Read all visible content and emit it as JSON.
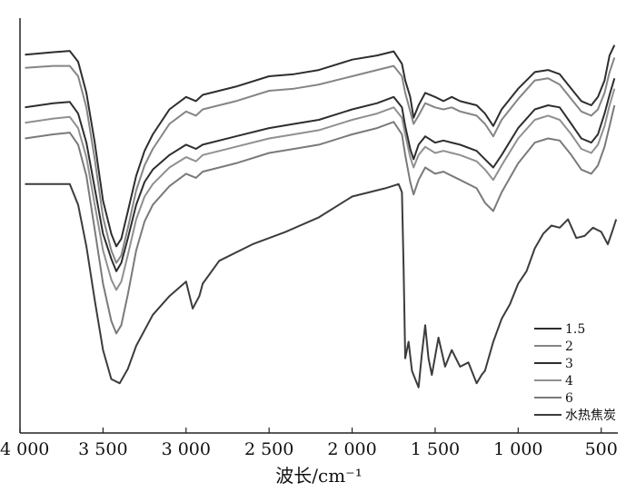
{
  "chart_data": {
    "type": "line",
    "title": "",
    "xlabel": "波长/cm⁻¹",
    "ylabel": "",
    "xlim": [
      4000,
      400
    ],
    "x_reversed": true,
    "x_ticks": [
      4000,
      3500,
      3000,
      2500,
      2000,
      1500,
      1000,
      500
    ],
    "x_tick_labels": [
      "4 000",
      "3 500",
      "3 000",
      "2 500",
      "2 000",
      "1 500",
      "1 000",
      "500"
    ],
    "ylim": [
      0,
      100
    ],
    "y_ticks": false,
    "grid": false,
    "legend_position": "bottom-right",
    "series": [
      {
        "name": "1.5",
        "color": "#2e2e2e",
        "x": [
          3970,
          3800,
          3700,
          3650,
          3600,
          3550,
          3500,
          3450,
          3420,
          3390,
          3350,
          3300,
          3250,
          3200,
          3100,
          3000,
          2940,
          2900,
          2700,
          2500,
          2350,
          2200,
          2000,
          1850,
          1750,
          1700,
          1680,
          1650,
          1630,
          1600,
          1560,
          1500,
          1450,
          1400,
          1350,
          1250,
          1200,
          1150,
          1100,
          1000,
          900,
          820,
          750,
          680,
          620,
          560,
          520,
          480,
          450,
          420
        ],
        "y": [
          91.2,
          91.8,
          92.1,
          89.5,
          82.0,
          70.0,
          56.0,
          48.0,
          45.0,
          46.8,
          53.5,
          62.0,
          68.0,
          72.0,
          78.0,
          81.0,
          80.0,
          81.5,
          83.5,
          86.0,
          86.5,
          87.5,
          90.0,
          91.0,
          92.0,
          89.0,
          85.0,
          81.0,
          76.0,
          79.0,
          82.0,
          81.0,
          80.0,
          81.0,
          80.0,
          79.0,
          77.0,
          74.0,
          78.0,
          83.0,
          87.0,
          87.5,
          86.5,
          83.0,
          80.0,
          79.0,
          81.0,
          85.0,
          91.0,
          93.5
        ]
      },
      {
        "name": "2",
        "color": "#858585",
        "x": [
          3970,
          3800,
          3700,
          3650,
          3600,
          3550,
          3500,
          3450,
          3420,
          3390,
          3350,
          3300,
          3250,
          3200,
          3100,
          3000,
          2940,
          2900,
          2700,
          2500,
          2350,
          2200,
          2000,
          1850,
          1750,
          1700,
          1680,
          1650,
          1630,
          1600,
          1560,
          1500,
          1450,
          1400,
          1350,
          1250,
          1200,
          1150,
          1100,
          1000,
          900,
          820,
          750,
          680,
          620,
          560,
          520,
          480,
          450,
          420
        ],
        "y": [
          88.0,
          88.5,
          88.5,
          86.0,
          78.5,
          66.0,
          52.0,
          44.0,
          41.0,
          42.8,
          49.5,
          58.5,
          64.5,
          68.5,
          74.5,
          77.5,
          76.5,
          78.0,
          80.0,
          82.5,
          83.0,
          84.0,
          86.0,
          87.5,
          88.5,
          86.0,
          82.0,
          77.5,
          74.5,
          76.5,
          79.5,
          78.5,
          78.0,
          78.5,
          77.5,
          76.5,
          74.5,
          71.5,
          75.5,
          80.5,
          85.0,
          85.5,
          84.0,
          80.5,
          77.5,
          76.5,
          78.0,
          82.0,
          87.0,
          90.5
        ]
      },
      {
        "name": "3",
        "color": "#2e2e2e",
        "x": [
          3970,
          3800,
          3700,
          3650,
          3600,
          3550,
          3500,
          3450,
          3420,
          3390,
          3350,
          3300,
          3250,
          3200,
          3100,
          3000,
          2940,
          2900,
          2700,
          2500,
          2350,
          2200,
          2000,
          1850,
          1750,
          1700,
          1680,
          1650,
          1630,
          1600,
          1560,
          1500,
          1450,
          1400,
          1350,
          1250,
          1200,
          1150,
          1100,
          1000,
          900,
          820,
          750,
          680,
          620,
          560,
          520,
          480,
          450,
          420
        ],
        "y": [
          78.5,
          79.5,
          79.8,
          77.0,
          70.0,
          59.0,
          48.0,
          42.0,
          39.0,
          41.0,
          47.0,
          55.0,
          60.5,
          63.5,
          67.0,
          69.5,
          68.5,
          69.5,
          71.5,
          73.5,
          74.5,
          75.5,
          78.0,
          79.5,
          81.0,
          78.5,
          74.0,
          68.5,
          66.0,
          69.5,
          71.5,
          70.0,
          70.5,
          70.0,
          69.5,
          68.0,
          66.0,
          64.0,
          67.0,
          73.5,
          78.0,
          79.0,
          78.5,
          74.5,
          71.0,
          70.0,
          72.0,
          77.0,
          81.5,
          85.5
        ]
      },
      {
        "name": "4",
        "color": "#909090",
        "x": [
          3970,
          3800,
          3700,
          3650,
          3600,
          3550,
          3500,
          3450,
          3420,
          3390,
          3350,
          3300,
          3250,
          3200,
          3100,
          3000,
          2940,
          2900,
          2700,
          2500,
          2350,
          2200,
          2000,
          1850,
          1750,
          1700,
          1680,
          1650,
          1630,
          1600,
          1560,
          1500,
          1450,
          1400,
          1350,
          1250,
          1200,
          1150,
          1100,
          1000,
          900,
          820,
          750,
          680,
          620,
          560,
          520,
          480,
          450,
          420
        ],
        "y": [
          74.8,
          75.8,
          76.2,
          73.5,
          66.5,
          55.0,
          44.0,
          37.0,
          34.5,
          36.5,
          43.0,
          51.5,
          57.0,
          60.0,
          64.0,
          66.5,
          65.5,
          67.0,
          69.0,
          71.0,
          72.0,
          73.0,
          75.5,
          77.0,
          78.5,
          76.0,
          72.0,
          66.5,
          64.0,
          67.0,
          69.0,
          67.5,
          68.0,
          67.5,
          67.0,
          65.5,
          63.5,
          61.0,
          64.5,
          71.0,
          75.5,
          76.5,
          75.5,
          72.0,
          68.5,
          67.5,
          69.5,
          74.0,
          79.0,
          83.0
        ]
      },
      {
        "name": "6",
        "color": "#7a7a7a",
        "x": [
          3970,
          3800,
          3700,
          3650,
          3600,
          3550,
          3500,
          3450,
          3420,
          3390,
          3350,
          3300,
          3250,
          3200,
          3100,
          3000,
          2940,
          2900,
          2700,
          2500,
          2350,
          2200,
          2000,
          1850,
          1750,
          1700,
          1680,
          1650,
          1630,
          1600,
          1560,
          1500,
          1450,
          1400,
          1350,
          1250,
          1200,
          1150,
          1100,
          1000,
          900,
          820,
          750,
          680,
          620,
          560,
          520,
          480,
          450,
          420
        ],
        "y": [
          71.0,
          72.0,
          72.4,
          69.5,
          62.0,
          49.0,
          36.0,
          27.0,
          24.0,
          26.0,
          33.5,
          44.0,
          51.0,
          55.0,
          59.5,
          62.5,
          61.5,
          63.0,
          65.0,
          67.5,
          68.5,
          69.5,
          72.0,
          73.5,
          75.0,
          72.0,
          67.0,
          60.5,
          57.5,
          61.0,
          64.0,
          62.5,
          63.0,
          62.0,
          61.0,
          59.0,
          55.5,
          53.5,
          58.0,
          65.0,
          70.0,
          71.0,
          70.5,
          67.0,
          63.5,
          62.5,
          64.5,
          69.0,
          74.0,
          79.0
        ]
      },
      {
        "name": "水热焦炭",
        "color": "#3c3c3c",
        "x": [
          3970,
          3800,
          3700,
          3650,
          3600,
          3550,
          3500,
          3450,
          3400,
          3350,
          3300,
          3200,
          3100,
          3000,
          2960,
          2920,
          2900,
          2800,
          2600,
          2400,
          2200,
          2000,
          1800,
          1720,
          1700,
          1690,
          1680,
          1660,
          1640,
          1620,
          1600,
          1580,
          1560,
          1540,
          1520,
          1480,
          1440,
          1400,
          1350,
          1300,
          1250,
          1220,
          1200,
          1150,
          1100,
          1050,
          1000,
          950,
          900,
          850,
          800,
          750,
          700,
          650,
          600,
          550,
          500,
          460,
          430,
          410
        ],
        "y": [
          60.0,
          60.0,
          60.0,
          55.0,
          45.0,
          32.0,
          20.0,
          13.0,
          12.0,
          15.5,
          21.0,
          28.5,
          33.0,
          36.5,
          30.0,
          33.0,
          36.0,
          41.5,
          45.5,
          48.5,
          52.0,
          57.0,
          59.0,
          60.0,
          58.0,
          40.0,
          18.0,
          22.0,
          15.0,
          13.0,
          11.0,
          19.0,
          26.0,
          18.0,
          14.0,
          23.0,
          16.0,
          20.0,
          16.0,
          17.0,
          12.0,
          14.0,
          15.0,
          22.0,
          27.5,
          31.0,
          36.0,
          39.0,
          44.5,
          48.0,
          50.0,
          49.5,
          51.5,
          47.0,
          47.5,
          49.5,
          48.5,
          45.5,
          49.0,
          51.5
        ]
      }
    ]
  }
}
